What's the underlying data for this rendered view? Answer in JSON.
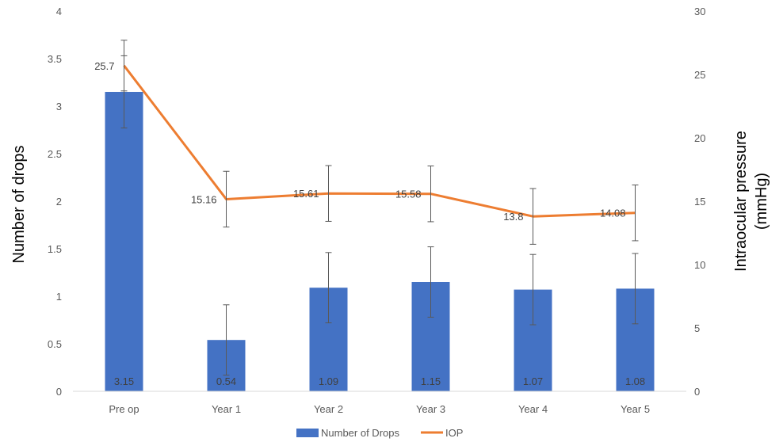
{
  "chart_data": {
    "type": "bar",
    "title": "",
    "categories": [
      "Pre op",
      "Year 1",
      "Year 2",
      "Year 3",
      "Year 4",
      "Year 5"
    ],
    "ylabel_left": "Number of drops",
    "ylabel_right": [
      "Intraocular pressure",
      "(mmHg)"
    ],
    "ylim_left": [
      0,
      4
    ],
    "yticks_left": [
      "0",
      "0.5",
      "1",
      "1.5",
      "2",
      "2.5",
      "3",
      "3.5",
      "4"
    ],
    "ylim_right": [
      0,
      30
    ],
    "yticks_right": [
      "0",
      "5",
      "10",
      "15",
      "20",
      "25",
      "30"
    ],
    "grid": false,
    "legend_position": "bottom",
    "series": [
      {
        "name": "Number of Drops",
        "kind": "bar",
        "axis": "left",
        "color": "#4472C4",
        "values": [
          3.15,
          0.54,
          1.09,
          1.15,
          1.07,
          1.08
        ],
        "labels": [
          "3.15",
          "0.54",
          "1.09",
          "1.15",
          "1.07",
          "1.08"
        ],
        "error": [
          0.38,
          0.37,
          0.37,
          0.37,
          0.37,
          0.37
        ]
      },
      {
        "name": "IOP",
        "kind": "line",
        "axis": "right",
        "color": "#ED7D31",
        "values": [
          25.7,
          15.16,
          15.61,
          15.58,
          13.8,
          14.08
        ],
        "labels": [
          "25.7",
          "15.16",
          "15.61",
          "15.58",
          "13.8",
          "14.08"
        ],
        "error": [
          2.0,
          2.2,
          2.2,
          2.2,
          2.2,
          2.2
        ]
      }
    ]
  }
}
